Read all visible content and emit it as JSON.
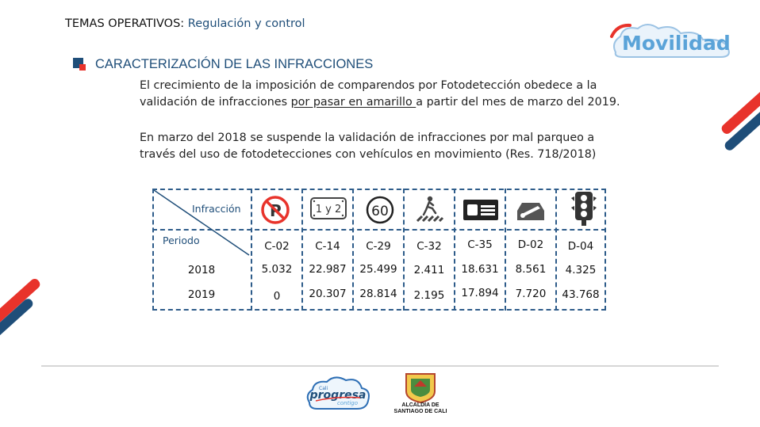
{
  "header": {
    "title": "TEMAS OPERATIVOS:",
    "subtitle": "Regulación y control"
  },
  "brand": {
    "logo_text": "Movilidad",
    "accent": "#e8332b",
    "primary": "#1f4e79",
    "sky": "#5aa3d8"
  },
  "section": {
    "title": "CARACTERIZACIÓN DE LAS INFRACCIONES",
    "para1_line1": "El crecimiento de la imposición de comparendos por Fotodetección obedece a la",
    "para1_line2_pre": "validación de infracciones ",
    "para1_line2_underline": "por pasar en amarillo ",
    "para1_line2_post": "a partir del mes de marzo del 2019.",
    "para2_line1": "En marzo del 2018 se suspende la validación de infracciones por mal parqueo a",
    "para2_line2": "través del uso de fotodetecciones con vehículos en movimiento (Res. 718/2018)"
  },
  "table": {
    "corner_top": "Infracción",
    "corner_bottom": "Periodo",
    "icons": [
      "no-parking-icon",
      "pico-y-placa-icon",
      "speed-limit-icon",
      "pedestrian-crossing-icon",
      "license-plate-icon",
      "vehicle-inspection-icon",
      "traffic-light-icon"
    ],
    "speed_value": "60",
    "plate_text": "1 y 2",
    "codes": [
      "C-02",
      "C-14",
      "C-29",
      "C-32",
      "C-35",
      "D-02",
      "D-04"
    ],
    "rows": [
      {
        "year": "2018",
        "values": [
          "5.032",
          "22.987",
          "25.499",
          "2.411",
          "18.631",
          "8.561",
          "4.325"
        ]
      },
      {
        "year": "2019",
        "values": [
          "0",
          "20.307",
          "28.814",
          "2.195",
          "17.894",
          "7.720",
          "43.768"
        ]
      }
    ]
  },
  "footer": {
    "cali_logo_top": "Cali",
    "cali_logo_main": "progresa",
    "cali_logo_bottom": "contigo",
    "alcaldia_line1": "ALCALDÍA DE",
    "alcaldia_line2": "SANTIAGO DE CALI"
  }
}
